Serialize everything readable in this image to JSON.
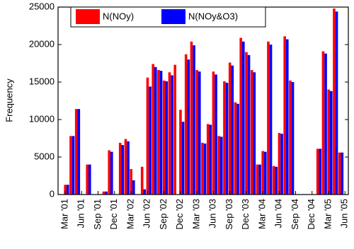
{
  "chart_data": {
    "type": "bar",
    "y_label": "Frequency",
    "categories": [
      "Mar '01",
      null,
      null,
      "Jun '01",
      null,
      null,
      "Sep '01",
      null,
      null,
      "Dec '01",
      null,
      null,
      "Mar '02",
      null,
      null,
      "Jun '02",
      null,
      null,
      "Sep '02",
      null,
      null,
      "Dec '02",
      null,
      null,
      "Mar '03",
      null,
      null,
      "Jun '03",
      null,
      null,
      "Sep '03",
      null,
      null,
      "Dec '03",
      null,
      null,
      "Mar '04",
      null,
      null,
      "Jun '04",
      null,
      null,
      "Sep '04",
      null,
      null,
      "Dec '04",
      null,
      null,
      "Mar '05",
      null,
      null,
      "Jun '05"
    ],
    "series": [
      {
        "name": "N(NOy)",
        "color": "#ff0000",
        "values": [
          1300,
          7800,
          11400,
          0,
          4000,
          0,
          0,
          400,
          5900,
          0,
          6900,
          7400,
          3400,
          0,
          3700,
          15600,
          17400,
          16600,
          15200,
          16300,
          17300,
          11300,
          18700,
          20400,
          16600,
          6900,
          9400,
          16400,
          7800,
          15100,
          17600,
          12300,
          20900,
          19000,
          16600,
          4000,
          5800,
          20400,
          3800,
          8200,
          21100,
          15200,
          0,
          0,
          0,
          0,
          6100,
          19100,
          14000,
          24800,
          5600,
          0
        ]
      },
      {
        "name": "N(NOy&O3)",
        "color": "#0000ff",
        "values": [
          1300,
          7800,
          11400,
          0,
          4000,
          0,
          0,
          400,
          5700,
          0,
          6600,
          7100,
          1900,
          0,
          700,
          14400,
          17000,
          16500,
          15100,
          15900,
          0,
          9700,
          18000,
          19900,
          16400,
          6800,
          9300,
          16000,
          7700,
          14900,
          17200,
          12100,
          20400,
          18600,
          16300,
          4000,
          5700,
          20000,
          3700,
          8100,
          20700,
          15000,
          0,
          0,
          0,
          0,
          6100,
          18800,
          13800,
          24400,
          5600,
          0
        ]
      }
    ],
    "ylim": [
      0,
      25000
    ],
    "yticks": [
      0,
      5000,
      10000,
      15000,
      20000,
      25000
    ]
  }
}
